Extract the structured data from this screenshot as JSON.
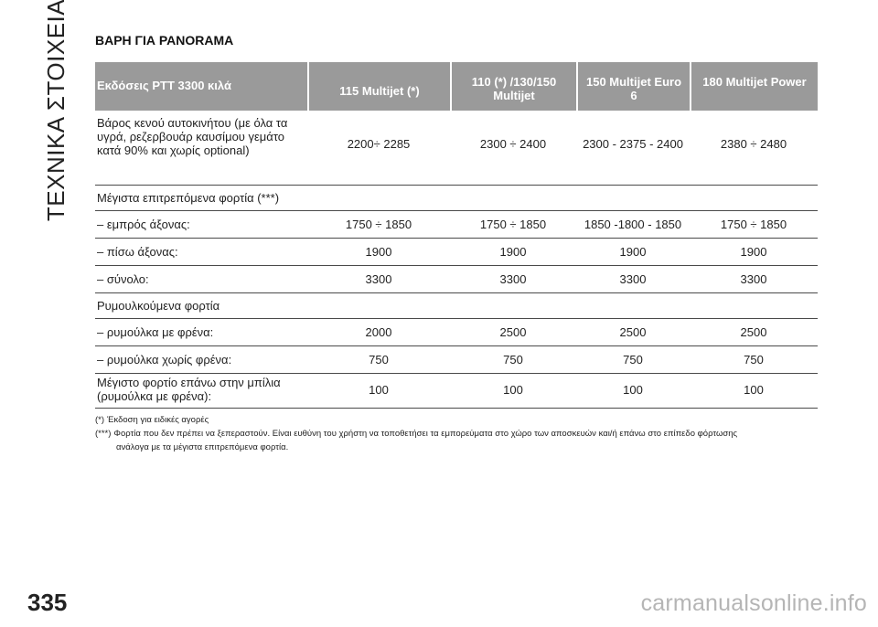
{
  "sidebar": {
    "section_title": "ΤΕΧΝΙΚΑ ΣΤΟΙΧΕΙΑ"
  },
  "page_number": "335",
  "title": "ΒΑΡΗ ΓΙΑ PANORAMA",
  "table": {
    "headers": [
      "Εκδόσεις PTT 3300 κιλά",
      "115 Multijet (*)",
      "110 (*) /130/150 Multijet",
      "150 Multijet Euro 6",
      "180 Multijet Power"
    ],
    "rows": [
      {
        "label": "Βάρος κενού αυτοκινήτου (με όλα τα υγρά, ρεζερβουάρ καυσίμου γεμάτο κατά 90% και χωρίς optional)",
        "values": [
          "2200÷ 2285",
          "2300 ÷ 2400",
          "2300 - 2375 - 2400",
          "2380 ÷ 2480"
        ]
      },
      {
        "label": "Μέγιστα επιτρεπόμενα φορτία (***)",
        "values": [
          "",
          "",
          "",
          ""
        ]
      },
      {
        "label": "– εμπρός άξονας:",
        "values": [
          "1750 ÷ 1850",
          "1750 ÷ 1850",
          "1850 -1800 - 1850",
          "1750 ÷ 1850"
        ]
      },
      {
        "label": "– πίσω άξονας:",
        "values": [
          "1900",
          "1900",
          "1900",
          "1900"
        ]
      },
      {
        "label": "– σύνολο:",
        "values": [
          "3300",
          "3300",
          "3300",
          "3300"
        ]
      },
      {
        "label": "Ρυμουλκούμενα φορτία",
        "values": [
          "",
          "",
          "",
          ""
        ]
      },
      {
        "label": "– ρυμούλκα με φρένα:",
        "values": [
          "2000",
          "2500",
          "2500",
          "2500"
        ]
      },
      {
        "label": "– ρυμούλκα χωρίς φρένα:",
        "values": [
          "750",
          "750",
          "750",
          "750"
        ]
      },
      {
        "label": "Μέγιστο φορτίο επάνω στην μπίλια (ρυμούλκα με φρένα):",
        "values": [
          "100",
          "100",
          "100",
          "100"
        ]
      }
    ]
  },
  "footnotes": [
    {
      "mark": "(*)",
      "text": "Έκδοση για ειδικές αγορές"
    },
    {
      "mark": "(***)",
      "text": "Φορτία που δεν πρέπει να ξεπεραστούν. Είναι ευθύνη του χρήστη να τοποθετήσει τα εμπορεύματα στο χώρο των αποσκευών και/ή επάνω στο επίπεδο φόρτωσης",
      "continuation": "ανάλογα με τα μέγιστα επιτρεπόμενα φορτία."
    }
  ],
  "watermark": "carmanualsonline.info"
}
